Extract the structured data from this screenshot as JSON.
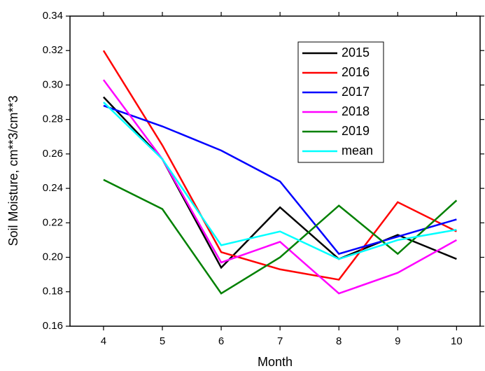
{
  "chart_data": {
    "type": "line",
    "x_label": "Month",
    "y_label": "Soil Moisture, cm**3/cm**3",
    "x": [
      4,
      5,
      6,
      7,
      8,
      9,
      10
    ],
    "series": [
      {
        "name": "2015",
        "color": "#000000",
        "values": [
          0.293,
          0.257,
          0.194,
          0.229,
          0.199,
          0.213,
          0.199
        ]
      },
      {
        "name": "2016",
        "color": "#ff0000",
        "values": [
          0.32,
          0.265,
          0.203,
          0.193,
          0.187,
          0.232,
          0.215
        ]
      },
      {
        "name": "2017",
        "color": "#0000ff",
        "values": [
          0.288,
          0.276,
          0.262,
          0.244,
          0.202,
          0.212,
          0.222
        ]
      },
      {
        "name": "2018",
        "color": "#ff00ff",
        "values": [
          0.303,
          0.257,
          0.197,
          0.209,
          0.179,
          0.191,
          0.21
        ]
      },
      {
        "name": "2019",
        "color": "#008000",
        "values": [
          0.245,
          0.228,
          0.179,
          0.2,
          0.23,
          0.202,
          0.233
        ]
      },
      {
        "name": "mean",
        "color": "#00ffff",
        "values": [
          0.29,
          0.257,
          0.207,
          0.215,
          0.199,
          0.21,
          0.216
        ]
      }
    ],
    "xlim": [
      3.43,
      10.4
    ],
    "xticks": [
      4,
      5,
      6,
      7,
      8,
      9,
      10
    ],
    "ylim": [
      0.16,
      0.34
    ],
    "yticks": [
      0.16,
      0.18,
      {
        "value": 0.2,
        "label": "0.20"
      },
      0.22,
      0.24,
      0.26,
      0.28,
      {
        "value": 0.3,
        "label": "0.30"
      },
      0.32,
      0.34
    ],
    "grid": false,
    "legend": "upper right"
  }
}
